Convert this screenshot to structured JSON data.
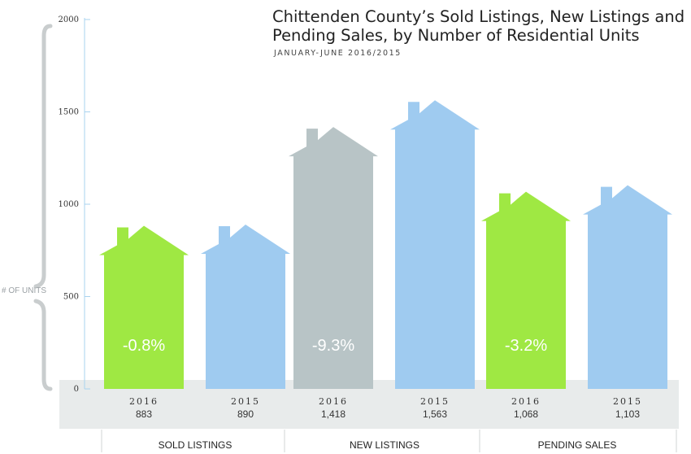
{
  "title": "Chittenden County’s Sold Listings, New Listings and Pending Sales, by Number of Residential Units",
  "subtitle": "JANUARY-JUNE 2016/2015",
  "ylabel": "# OF UNITS",
  "colors": {
    "green_2016": "#9fe843",
    "gray_2016": "#b8c4c6",
    "blue_2015": "#9fcbf0",
    "axis": "#a9d3ef",
    "band": "#e8ebeb",
    "bracket": "#c9cdce"
  },
  "chart_data": {
    "type": "bar",
    "title": "Chittenden County’s Sold Listings, New Listings and Pending Sales, by Number of Residential Units",
    "subtitle": "JANUARY-JUNE 2016/2015",
    "ylabel": "# OF UNITS",
    "xlabel": "",
    "ylim": [
      0,
      2000
    ],
    "yticks": [
      "0",
      "500",
      "1000",
      "1500",
      "2000"
    ],
    "grid": false,
    "categories": [
      "SOLD LISTINGS",
      "NEW LISTINGS",
      "PENDING SALES"
    ],
    "series": [
      {
        "name": "2016",
        "values": [
          883,
          1418,
          1068
        ],
        "labels": [
          "883",
          "1,418",
          "1,068"
        ],
        "colors": [
          "#9fe843",
          "#b8c4c6",
          "#9fe843"
        ]
      },
      {
        "name": "2015",
        "values": [
          890,
          1563,
          1103
        ],
        "labels": [
          "890",
          "1,563",
          "1,103"
        ],
        "colors": [
          "#9fcbf0",
          "#9fcbf0",
          "#9fcbf0"
        ]
      }
    ],
    "annotations": [
      "-0.8%",
      "-9.3%",
      "-3.2%"
    ]
  }
}
